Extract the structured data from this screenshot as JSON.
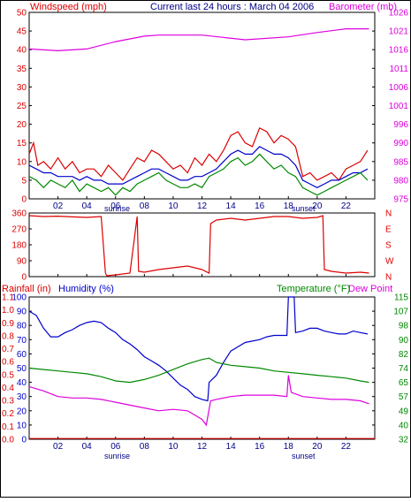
{
  "header": {
    "left": "Windspeed (mph)",
    "center": "Current last 24 hours : March 04 2006",
    "right": "Barometer (mb)"
  },
  "footer_labels": {
    "sunrise": "sunrise",
    "sunset": "sunset"
  },
  "colors": {
    "red": "#dd0000",
    "blue": "#0000cc",
    "green": "#008800",
    "magenta": "#dd00dd",
    "axisText": "#000088"
  },
  "chart_data": [
    {
      "type": "line",
      "title": "Current last 24 hours : March 04 2006",
      "ylabel_left": "Windspeed (mph)",
      "ylabel_right": "Barometer (mb)",
      "x_ticks": [
        "02",
        "04",
        "06",
        "08",
        "10",
        "12",
        "14",
        "16",
        "18",
        "20",
        "22"
      ],
      "x_range": [
        0,
        24
      ],
      "ylim_left": [
        0,
        50
      ],
      "yticks_left": [
        "0",
        "5",
        "10",
        "15",
        "20",
        "25",
        "30",
        "35",
        "40",
        "45",
        "50"
      ],
      "ylim_right": [
        975,
        1026
      ],
      "yticks_right": [
        "975",
        "980",
        "985",
        "990",
        "996",
        "1001",
        "1006",
        "1011",
        "1016",
        "1021",
        "1026"
      ],
      "series": [
        {
          "color": "#dd0000",
          "axis": "left",
          "x": [
            0.0,
            0.3,
            0.6,
            1.0,
            1.5,
            2.0,
            2.5,
            3.0,
            3.5,
            4.0,
            4.5,
            5.0,
            5.5,
            6.0,
            6.5,
            7.0,
            7.5,
            8.0,
            8.5,
            9.0,
            9.5,
            10.0,
            10.5,
            11.0,
            11.5,
            12.0,
            12.5,
            13.0,
            13.5,
            14.0,
            14.5,
            15.0,
            15.5,
            16.0,
            16.5,
            17.0,
            17.5,
            18.0,
            18.5,
            19.0,
            19.5,
            20.0,
            20.5,
            21.0,
            21.5,
            22.0,
            22.5,
            23.0,
            23.5
          ],
          "y": [
            12,
            15,
            9,
            10,
            8,
            11,
            8,
            10,
            7,
            8,
            8,
            6,
            9,
            7,
            5,
            8,
            11,
            10,
            13,
            12,
            10,
            8,
            9,
            7,
            11,
            9,
            12,
            10,
            13,
            17,
            18,
            15,
            14,
            19,
            18,
            15,
            17,
            16,
            14,
            6,
            7,
            5,
            6,
            7,
            5,
            8,
            9,
            10,
            13
          ]
        },
        {
          "color": "#0000cc",
          "axis": "left",
          "x": [
            0.0,
            0.5,
            1.0,
            1.5,
            2.0,
            2.5,
            3.0,
            3.5,
            4.0,
            4.5,
            5.0,
            5.5,
            6.0,
            6.5,
            7.0,
            7.5,
            8.0,
            8.5,
            9.0,
            9.5,
            10.0,
            10.5,
            11.0,
            11.5,
            12.0,
            12.5,
            13.0,
            13.5,
            14.0,
            14.5,
            15.0,
            15.5,
            16.0,
            16.5,
            17.0,
            17.5,
            18.0,
            18.5,
            19.0,
            19.5,
            20.0,
            20.5,
            21.0,
            21.5,
            22.0,
            22.5,
            23.0,
            23.5
          ],
          "y": [
            9,
            8,
            7,
            7,
            6,
            6,
            6,
            5,
            6,
            5,
            5,
            4,
            4,
            4,
            5,
            6,
            7,
            8,
            8,
            7,
            6,
            5,
            5,
            6,
            6,
            7,
            8,
            10,
            12,
            13,
            12,
            12,
            14,
            13,
            12,
            12,
            11,
            9,
            5,
            4,
            3,
            4,
            5,
            5,
            6,
            7,
            7,
            8
          ]
        },
        {
          "color": "#008800",
          "axis": "left",
          "x": [
            0.0,
            0.5,
            1.0,
            1.5,
            2.0,
            2.5,
            3.0,
            3.5,
            4.0,
            4.5,
            5.0,
            5.5,
            6.0,
            6.5,
            7.0,
            7.5,
            8.0,
            8.5,
            9.0,
            9.5,
            10.0,
            10.5,
            11.0,
            11.5,
            12.0,
            12.5,
            13.0,
            13.5,
            14.0,
            14.5,
            15.0,
            15.5,
            16.0,
            16.5,
            17.0,
            17.5,
            18.0,
            18.5,
            19.0,
            19.5,
            20.0,
            20.5,
            21.0,
            21.5,
            22.0,
            22.5,
            23.0,
            23.5
          ],
          "y": [
            6,
            5,
            3,
            5,
            4,
            3,
            5,
            2,
            4,
            3,
            2,
            3,
            1,
            3,
            2,
            4,
            5,
            6,
            7,
            5,
            4,
            3,
            3,
            4,
            3,
            6,
            7,
            8,
            10,
            11,
            9,
            10,
            12,
            10,
            8,
            9,
            7,
            6,
            3,
            2,
            1,
            2,
            3,
            4,
            5,
            6,
            7,
            5
          ]
        },
        {
          "color": "#dd00dd",
          "axis": "right",
          "x": [
            0,
            2,
            4,
            6,
            8,
            9,
            12,
            15,
            18,
            20,
            22,
            23.6
          ],
          "y": [
            1016,
            1015.5,
            1016,
            1018,
            1019.5,
            1019.8,
            1019.8,
            1018.5,
            1019.3,
            1020.5,
            1021.5,
            1021.5
          ]
        }
      ]
    },
    {
      "type": "line",
      "ylabel_right": "N W S E N",
      "x_ticks": [
        "02",
        "04",
        "06",
        "08",
        "10",
        "12",
        "14",
        "16",
        "18",
        "20",
        "22"
      ],
      "x_range": [
        0,
        24
      ],
      "ylim_left": [
        0,
        360
      ],
      "yticks_left": [
        "0",
        "90",
        "180",
        "270",
        "360"
      ],
      "right_labels": [
        "N",
        "W",
        "S",
        "E",
        "N"
      ],
      "series": [
        {
          "color": "#dd0000",
          "axis": "left",
          "x": [
            0.0,
            1.0,
            2.0,
            3.0,
            4.0,
            5.0,
            5.3,
            5.4,
            6.0,
            7.0,
            7.5,
            7.6,
            8.0,
            9.0,
            10.0,
            11.0,
            12.0,
            12.5,
            12.6,
            13.0,
            14.0,
            15.0,
            16.0,
            17.0,
            18.0,
            19.0,
            20.0,
            20.4,
            20.5,
            21.0,
            22.0,
            23.0,
            23.6
          ],
          "y": [
            345,
            340,
            342,
            338,
            335,
            340,
            20,
            5,
            10,
            20,
            340,
            30,
            25,
            40,
            50,
            60,
            40,
            20,
            300,
            320,
            330,
            320,
            330,
            340,
            340,
            330,
            335,
            345,
            40,
            30,
            20,
            25,
            20
          ]
        }
      ]
    },
    {
      "type": "line",
      "ylabel_left": "Rainfall (in)",
      "ylabel_left2": "Humidity (%)",
      "ylabel_right": "Temperature (°F)",
      "ylabel_right2": "Dew Point",
      "x_ticks": [
        "02",
        "04",
        "06",
        "08",
        "10",
        "12",
        "14",
        "16",
        "18",
        "20",
        "22"
      ],
      "x_range": [
        0,
        24
      ],
      "ylim_left": [
        0,
        100
      ],
      "yticks_left": [
        "0",
        "10",
        "20",
        "30",
        "40",
        "50",
        "60",
        "70",
        "80",
        "90",
        "100"
      ],
      "yticks_rain": [
        "0.0",
        "0.1",
        "0.2",
        "0.3",
        "0.4",
        "0.5",
        "0.6",
        "0.7",
        "0.8",
        "0.9",
        "1.0",
        "1.1"
      ],
      "ylim_right": [
        32,
        115
      ],
      "yticks_right": [
        "32",
        "40",
        "49",
        "57",
        "65",
        "74",
        "82",
        "90",
        "98",
        "107",
        "115"
      ],
      "series": [
        {
          "color": "#0000cc",
          "axis": "left",
          "x": [
            0.0,
            0.5,
            1.0,
            1.5,
            2.0,
            2.5,
            3.0,
            3.5,
            4.0,
            4.5,
            5.0,
            5.5,
            6.0,
            6.5,
            7.0,
            7.5,
            8.0,
            8.5,
            9.0,
            9.5,
            10.0,
            10.5,
            11.0,
            11.5,
            12.0,
            12.4,
            12.5,
            13.0,
            13.5,
            14.0,
            14.5,
            15.0,
            15.5,
            16.0,
            16.5,
            17.0,
            17.5,
            17.9,
            18.0,
            18.4,
            18.5,
            19.0,
            19.5,
            20.0,
            20.5,
            21.0,
            21.5,
            22.0,
            22.5,
            23.0,
            23.5
          ],
          "y": [
            90,
            87,
            78,
            72,
            72,
            75,
            77,
            80,
            82,
            83,
            82,
            78,
            75,
            70,
            67,
            63,
            58,
            55,
            52,
            48,
            43,
            38,
            35,
            30,
            28,
            27,
            40,
            45,
            54,
            62,
            65,
            68,
            69,
            70,
            72,
            73,
            73,
            73,
            100,
            100,
            75,
            76,
            78,
            78,
            76,
            75,
            74,
            74,
            76,
            75,
            74
          ]
        },
        {
          "color": "#008800",
          "axis": "left",
          "x": [
            0,
            1,
            2,
            3,
            4,
            5,
            6,
            7,
            8,
            9,
            10,
            11,
            12,
            12.5,
            13,
            14,
            15,
            16,
            17,
            18,
            19,
            20,
            21,
            22,
            23,
            23.6
          ],
          "y": [
            50,
            49,
            48,
            47,
            46,
            44,
            41,
            40,
            42,
            45,
            49,
            53,
            56,
            57,
            54,
            52,
            51,
            50,
            48,
            47,
            46,
            45,
            44,
            43,
            41,
            40
          ]
        },
        {
          "color": "#dd00dd",
          "axis": "left",
          "x": [
            0,
            1,
            2,
            3,
            4,
            5,
            6,
            7,
            8,
            9,
            10,
            11,
            11.5,
            12,
            12.3,
            12.6,
            13,
            14,
            15,
            16,
            17,
            17.9,
            18,
            18.2,
            19,
            20,
            21,
            22,
            23,
            23.6
          ],
          "y": [
            37,
            34,
            30,
            29,
            29,
            28,
            26,
            24,
            22,
            20,
            21,
            20,
            17,
            14,
            10,
            27,
            28,
            30,
            31,
            31,
            31,
            30,
            45,
            33,
            30,
            29,
            28,
            28,
            27,
            25
          ]
        },
        {
          "color": "#dd0000",
          "axis": "left",
          "x": [
            0,
            24
          ],
          "y": [
            0.5,
            0.5
          ]
        }
      ]
    }
  ]
}
